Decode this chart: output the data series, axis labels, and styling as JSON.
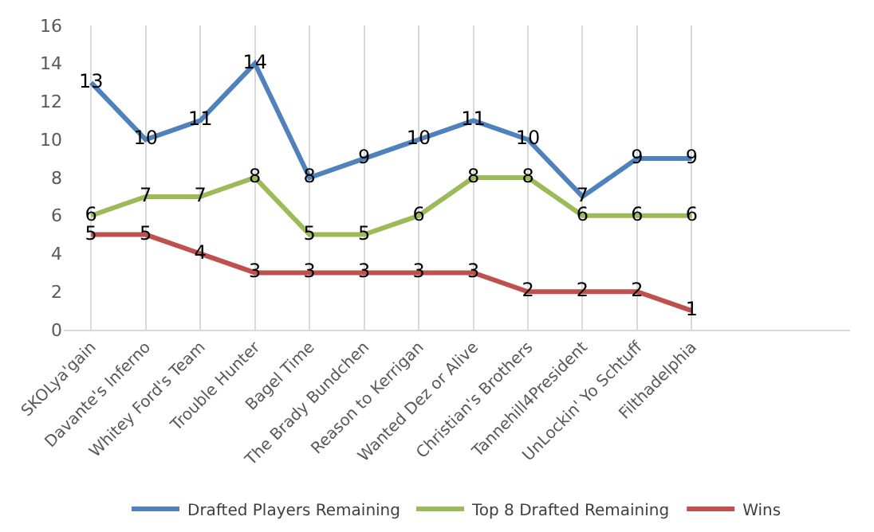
{
  "chart_data": {
    "type": "line",
    "categories": [
      "SKOLya'gain",
      "Davante's Inferno",
      "Whitey Ford's Team",
      "Trouble Hunter",
      "Bagel Time",
      "The Brady Bundchen",
      "Reason to Kerrigan",
      "Wanted Dez or Alive",
      "Christian's Brothers",
      "Tannehill4President",
      "UnLockin' Yo Schtuff",
      "Filthadelphia"
    ],
    "series": [
      {
        "name": "Drafted Players Remaining",
        "color": "#4f81bd",
        "values": [
          13,
          10,
          11,
          14,
          8,
          9,
          10,
          11,
          10,
          7,
          9,
          9
        ]
      },
      {
        "name": "Top 8 Drafted Remaining",
        "color": "#9bbb59",
        "values": [
          6,
          7,
          7,
          8,
          5,
          5,
          6,
          8,
          8,
          6,
          6,
          6
        ]
      },
      {
        "name": "Wins",
        "color": "#c0504d",
        "values": [
          5,
          5,
          4,
          3,
          3,
          3,
          3,
          3,
          2,
          2,
          2,
          1
        ]
      }
    ],
    "ylim": [
      0,
      16
    ],
    "yticks": [
      0,
      2,
      4,
      6,
      8,
      10,
      12,
      14,
      16
    ],
    "grid": "x",
    "legend": "bottom",
    "data_labels": true,
    "marker": "none",
    "line_style": "solid"
  }
}
